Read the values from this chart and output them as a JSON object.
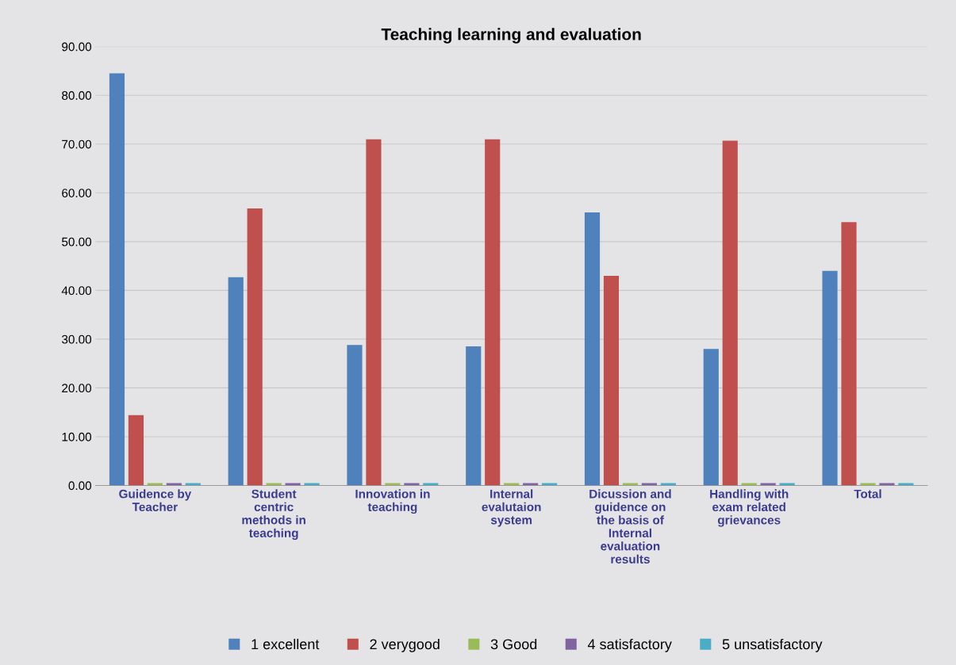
{
  "chart_data": {
    "type": "bar",
    "title": "Teaching learning and evaluation",
    "categories": [
      "Guidence by\nTeacher",
      "Student\ncentric\nmethods in\nteaching",
      "Innovation in\nteaching",
      "Internal\nevalutaion\nsystem",
      "Dicussion and\nguidence on\nthe basis of\nInternal\nevaluation\nresults",
      "Handling with\nexam related\ngrievances",
      "Total"
    ],
    "series": [
      {
        "name": "1 excellent",
        "color": "#4f81bd",
        "values": [
          84.5,
          42.7,
          28.8,
          28.5,
          56,
          28,
          44
        ]
      },
      {
        "name": "2 verygood",
        "color": "#c0504d",
        "values": [
          14.4,
          56.8,
          71,
          71,
          43,
          70.7,
          54
        ]
      },
      {
        "name": "3 Good",
        "color": "#9bbb59",
        "values": [
          0.5,
          0.5,
          0.5,
          0.5,
          0.5,
          0.5,
          0.5
        ]
      },
      {
        "name": "4 satisfactory",
        "color": "#8064a2",
        "values": [
          0.5,
          0.5,
          0.5,
          0.5,
          0.5,
          0.5,
          0.5
        ]
      },
      {
        "name": "5 unsatisfactory",
        "color": "#4bacc6",
        "values": [
          0.5,
          0.5,
          0.5,
          0.5,
          0.5,
          0.5,
          0.5
        ]
      }
    ],
    "ylim": [
      0,
      90
    ],
    "yticks": [
      {
        "value": 0,
        "label": "0.00"
      },
      {
        "value": 10,
        "label": "10.00"
      },
      {
        "value": 20,
        "label": "20.00"
      },
      {
        "value": 30,
        "label": "30.00"
      },
      {
        "value": 40,
        "label": "40.00"
      },
      {
        "value": 50,
        "label": "50.00"
      },
      {
        "value": 60,
        "label": "60.00"
      },
      {
        "value": 70,
        "label": "70.00"
      },
      {
        "value": 80,
        "label": "80.00"
      },
      {
        "value": 90,
        "label": "90.00"
      }
    ],
    "grid": "y",
    "legend": "bottom"
  }
}
